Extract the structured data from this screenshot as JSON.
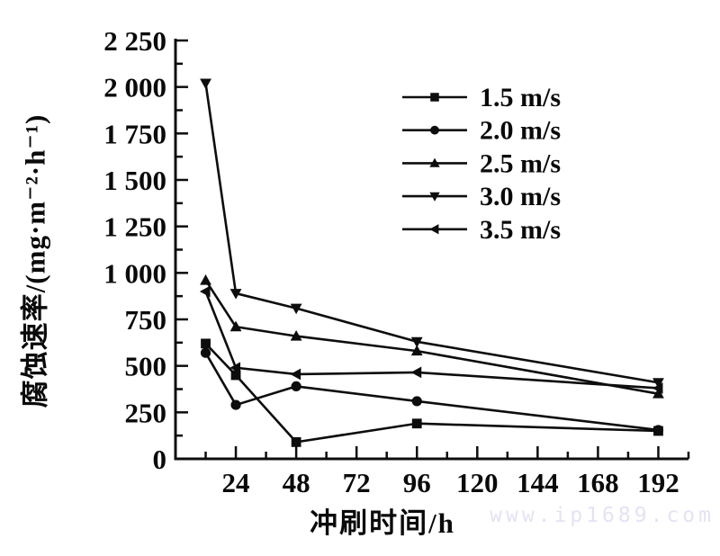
{
  "watermark": {
    "text": "www.ip1689.com",
    "color": "#e4e3f3"
  },
  "chart_data": {
    "type": "line",
    "title": "",
    "xlabel": "冲刷时间/h",
    "ylabel": "腐蚀速率/(mg·m⁻²·h⁻¹)",
    "x": [
      12,
      24,
      48,
      96,
      192
    ],
    "series": [
      {
        "name": "1.5 m/s",
        "marker": "square",
        "values": [
          620,
          450,
          90,
          190,
          150
        ]
      },
      {
        "name": "2.0 m/s",
        "marker": "circle",
        "values": [
          570,
          290,
          390,
          310,
          155
        ]
      },
      {
        "name": "2.5 m/s",
        "marker": "triangle-up",
        "values": [
          960,
          710,
          660,
          580,
          350
        ]
      },
      {
        "name": "3.0 m/s",
        "marker": "triangle-down",
        "values": [
          2020,
          890,
          810,
          630,
          410
        ]
      },
      {
        "name": "3.5 m/s",
        "marker": "triangle-left",
        "values": [
          900,
          490,
          455,
          465,
          380
        ]
      }
    ],
    "xlim": [
      0,
      204
    ],
    "ylim": [
      0,
      2250
    ],
    "x_ticks": [
      24,
      48,
      72,
      96,
      120,
      144,
      168,
      192
    ],
    "x_tick_labels": [
      "24",
      "48",
      "72",
      "96",
      "120",
      "144",
      "168",
      "192"
    ],
    "x_minor_ticks": [
      12,
      36,
      60,
      84,
      108,
      132,
      156,
      180,
      204
    ],
    "y_ticks": [
      0,
      250,
      500,
      750,
      1000,
      1250,
      1500,
      1750,
      2000,
      2250
    ],
    "y_tick_labels": [
      "0",
      "250",
      "500",
      "750",
      "1 000",
      "1 250",
      "1 500",
      "1 750",
      "2 000",
      "2 250"
    ],
    "y_minor_ticks": [
      125,
      375,
      625,
      875,
      1125,
      1375,
      1625,
      1875,
      2125
    ],
    "grid": false,
    "legend_position": "upper-center-right",
    "line_color": "#0d0d0d",
    "background_color": "#ffffff"
  }
}
